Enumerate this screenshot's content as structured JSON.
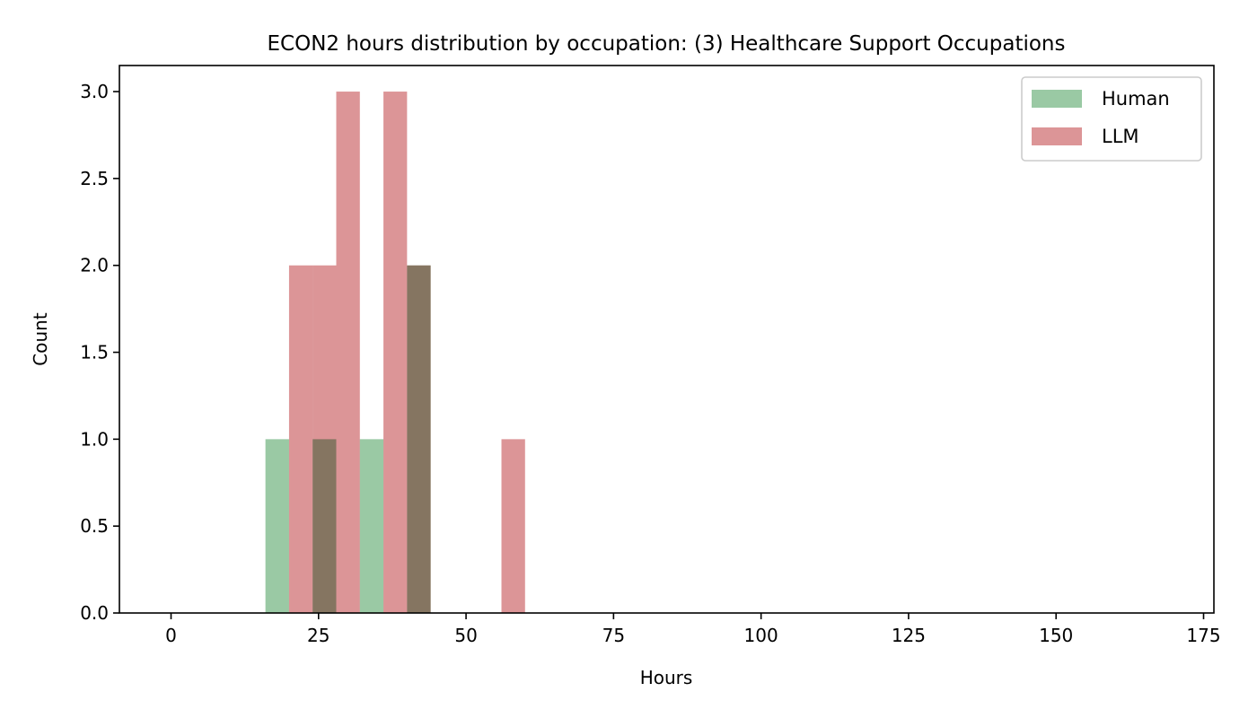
{
  "chart_data": {
    "type": "bar",
    "title": "ECON2 hours distribution by occupation: (3) Healthcare Support Occupations",
    "xlabel": "Hours",
    "ylabel": "Count",
    "xlim": [
      -8.75,
      176.75
    ],
    "ylim": [
      0,
      3.15
    ],
    "xticks": [
      0,
      25,
      50,
      75,
      100,
      125,
      150,
      175
    ],
    "yticks": [
      0.0,
      0.5,
      1.0,
      1.5,
      2.0,
      2.5,
      3.0
    ],
    "xtick_labels": [
      "0",
      "25",
      "50",
      "75",
      "100",
      "125",
      "150",
      "175"
    ],
    "ytick_labels": [
      "0.0",
      "0.5",
      "1.0",
      "1.5",
      "2.0",
      "2.5",
      "3.0"
    ],
    "grid": false,
    "legend_position": "upper right",
    "bin_width": 4,
    "series": [
      {
        "name": "Human",
        "color": "#9ac9a4",
        "bins": [
          {
            "x0": 16,
            "x1": 20,
            "count": 1
          },
          {
            "x0": 24,
            "x1": 28,
            "count": 1
          },
          {
            "x0": 32,
            "x1": 36,
            "count": 1
          },
          {
            "x0": 40,
            "x1": 44,
            "count": 2
          }
        ]
      },
      {
        "name": "LLM",
        "color": "#dc9597",
        "bins": [
          {
            "x0": 20,
            "x1": 24,
            "count": 2
          },
          {
            "x0": 24,
            "x1": 28,
            "count": 2
          },
          {
            "x0": 28,
            "x1": 32,
            "count": 3
          },
          {
            "x0": 36,
            "x1": 40,
            "count": 3
          },
          {
            "x0": 40,
            "x1": 44,
            "count": 2
          },
          {
            "x0": 56,
            "x1": 60,
            "count": 1
          }
        ]
      }
    ]
  }
}
